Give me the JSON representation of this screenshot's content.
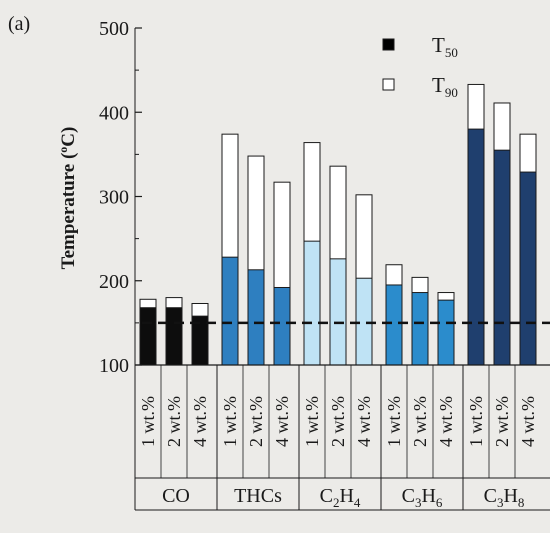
{
  "panel_label": "(a)",
  "colors": {
    "T50_CO": "#0d0d0d",
    "T50_THCs": "#2e7fc0",
    "T50_C2H4": "#bfe3f5",
    "T50_C3H6": "#2b8ccc",
    "T50_C3H8": "#1f3f6e",
    "T90": "#ffffff",
    "reference_line": "#111111"
  },
  "chart_data": {
    "type": "bar",
    "stacked": true,
    "ylabel": "Temperature (ºC)",
    "ylim": [
      100,
      500
    ],
    "yticks": [
      "100",
      "200",
      "300",
      "400",
      "500"
    ],
    "grid": false,
    "legend_position": "top-right",
    "legend": [
      {
        "key": "T50",
        "label": "T",
        "sub": "50",
        "swatch": "#000000"
      },
      {
        "key": "T90",
        "label": "T",
        "sub": "90",
        "swatch": "#ffffff"
      }
    ],
    "reference_line_y": 150,
    "groups": [
      {
        "name": "CO",
        "sub": "",
        "name2": "",
        "sub2": "",
        "color_key": "T50_CO",
        "bars": [
          {
            "label": "1 wt.%",
            "T50": 168,
            "T90": 178
          },
          {
            "label": "2 wt.%",
            "T50": 168,
            "T90": 180
          },
          {
            "label": "4 wt.%",
            "T50": 158,
            "T90": 173
          }
        ]
      },
      {
        "name": "THCs",
        "sub": "",
        "name2": "",
        "sub2": "",
        "color_key": "T50_THCs",
        "bars": [
          {
            "label": "1 wt.%",
            "T50": 228,
            "T90": 374
          },
          {
            "label": "2 wt.%",
            "T50": 213,
            "T90": 348
          },
          {
            "label": "4 wt.%",
            "T50": 192,
            "T90": 317
          }
        ]
      },
      {
        "name": "C",
        "sub": "2",
        "name2": "H",
        "sub2": "4",
        "color_key": "T50_C2H4",
        "bars": [
          {
            "label": "1 wt.%",
            "T50": 247,
            "T90": 364
          },
          {
            "label": "2 wt.%",
            "T50": 226,
            "T90": 336
          },
          {
            "label": "4 wt.%",
            "T50": 203,
            "T90": 302
          }
        ]
      },
      {
        "name": "C",
        "sub": "3",
        "name2": "H",
        "sub2": "6",
        "color_key": "T50_C3H6",
        "bars": [
          {
            "label": "1 wt.%",
            "T50": 195,
            "T90": 219
          },
          {
            "label": "2 wt.%",
            "T50": 186,
            "T90": 204
          },
          {
            "label": "4 wt.%",
            "T50": 177,
            "T90": 186
          }
        ]
      },
      {
        "name": "C",
        "sub": "3",
        "name2": "H",
        "sub2": "8",
        "color_key": "T50_C3H8",
        "bars": [
          {
            "label": "1 wt.%",
            "T50": 380,
            "T90": 433
          },
          {
            "label": "2 wt.%",
            "T50": 355,
            "T90": 411
          },
          {
            "label": "4 wt.%",
            "T50": 329,
            "T90": 374
          }
        ]
      }
    ]
  }
}
